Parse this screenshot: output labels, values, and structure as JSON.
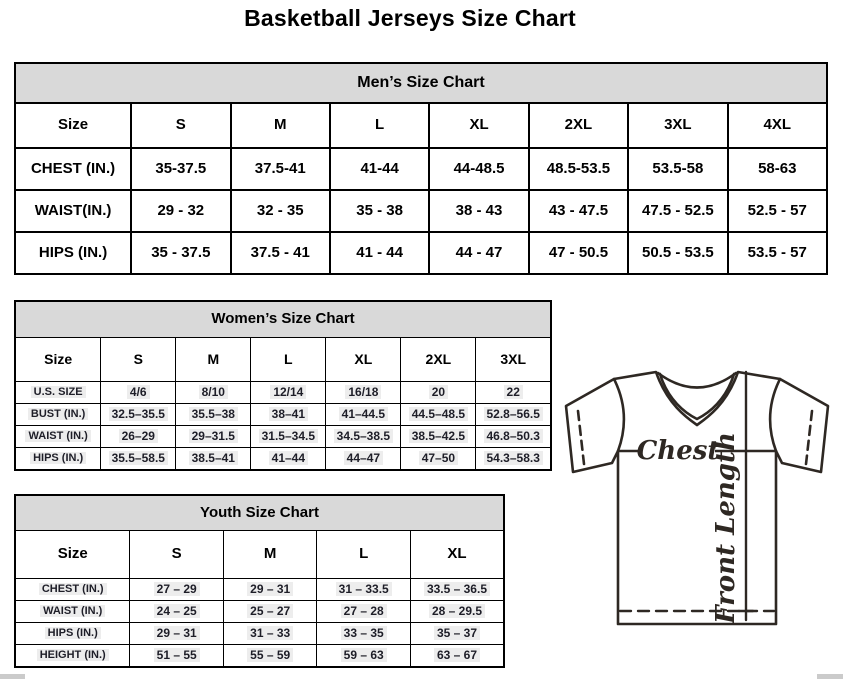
{
  "page_title": "Basketball Jerseys Size Chart",
  "tables": {
    "mens": {
      "title": "Men’s Size Chart",
      "columns": [
        "Size",
        "S",
        "M",
        "L",
        "XL",
        "2XL",
        "3XL",
        "4XL"
      ],
      "rows": [
        {
          "label": "CHEST (IN.)",
          "values": [
            "35-37.5",
            "37.5-41",
            "41-44",
            "44-48.5",
            "48.5-53.5",
            "53.5-58",
            "58-63"
          ]
        },
        {
          "label": "WAIST(IN.)",
          "values": [
            "29 - 32",
            "32 - 35",
            "35 - 38",
            "38 - 43",
            "43 - 47.5",
            "47.5 - 52.5",
            "52.5 - 57"
          ]
        },
        {
          "label": "HIPS (IN.)",
          "values": [
            "35 - 37.5",
            "37.5 - 41",
            "41 - 44",
            "44 - 47",
            "47 - 50.5",
            "50.5 - 53.5",
            "53.5 - 57"
          ]
        }
      ]
    },
    "womens": {
      "title": "Women’s Size Chart",
      "columns": [
        "Size",
        "S",
        "M",
        "L",
        "XL",
        "2XL",
        "3XL"
      ],
      "rows": [
        {
          "label": "U.S. SIZE",
          "values": [
            "4/6",
            "8/10",
            "12/14",
            "16/18",
            "20",
            "22"
          ]
        },
        {
          "label": "BUST (IN.)",
          "values": [
            "32.5–35.5",
            "35.5–38",
            "38–41",
            "41–44.5",
            "44.5–48.5",
            "52.8–56.5"
          ]
        },
        {
          "label": "WAIST (IN.)",
          "values": [
            "26–29",
            "29–31.5",
            "31.5–34.5",
            "34.5–38.5",
            "38.5–42.5",
            "46.8–50.3"
          ]
        },
        {
          "label": "HIPS (IN.)",
          "values": [
            "35.5–58.5",
            "38.5–41",
            "41–44",
            "44–47",
            "47–50",
            "54.3–58.3"
          ]
        }
      ]
    },
    "youth": {
      "title": "Youth Size Chart",
      "columns": [
        "Size",
        "S",
        "M",
        "L",
        "XL"
      ],
      "rows": [
        {
          "label": "CHEST (IN.)",
          "values": [
            "27 – 29",
            "29 – 31",
            "31 – 33.5",
            "33.5 – 36.5"
          ]
        },
        {
          "label": "WAIST (IN.)",
          "values": [
            "24 – 25",
            "25 – 27",
            "27 – 28",
            "28 – 29.5"
          ]
        },
        {
          "label": "HIPS (IN.)",
          "values": [
            "29 – 31",
            "31 – 33",
            "33 – 35",
            "35 – 37"
          ]
        },
        {
          "label": "HEIGHT (IN.)",
          "values": [
            "51 – 55",
            "55 – 59",
            "59 – 63",
            "63 – 67"
          ]
        }
      ]
    }
  },
  "diagram": {
    "chest_label": "Chest",
    "front_length_label": "Front Length"
  },
  "colors": {
    "table-header-bg": "#d9d9d9",
    "cell-highlight": "#ededed",
    "table-border": "#000000",
    "dark-text": "#1e1e28",
    "jersey-line": "#2e2823"
  }
}
